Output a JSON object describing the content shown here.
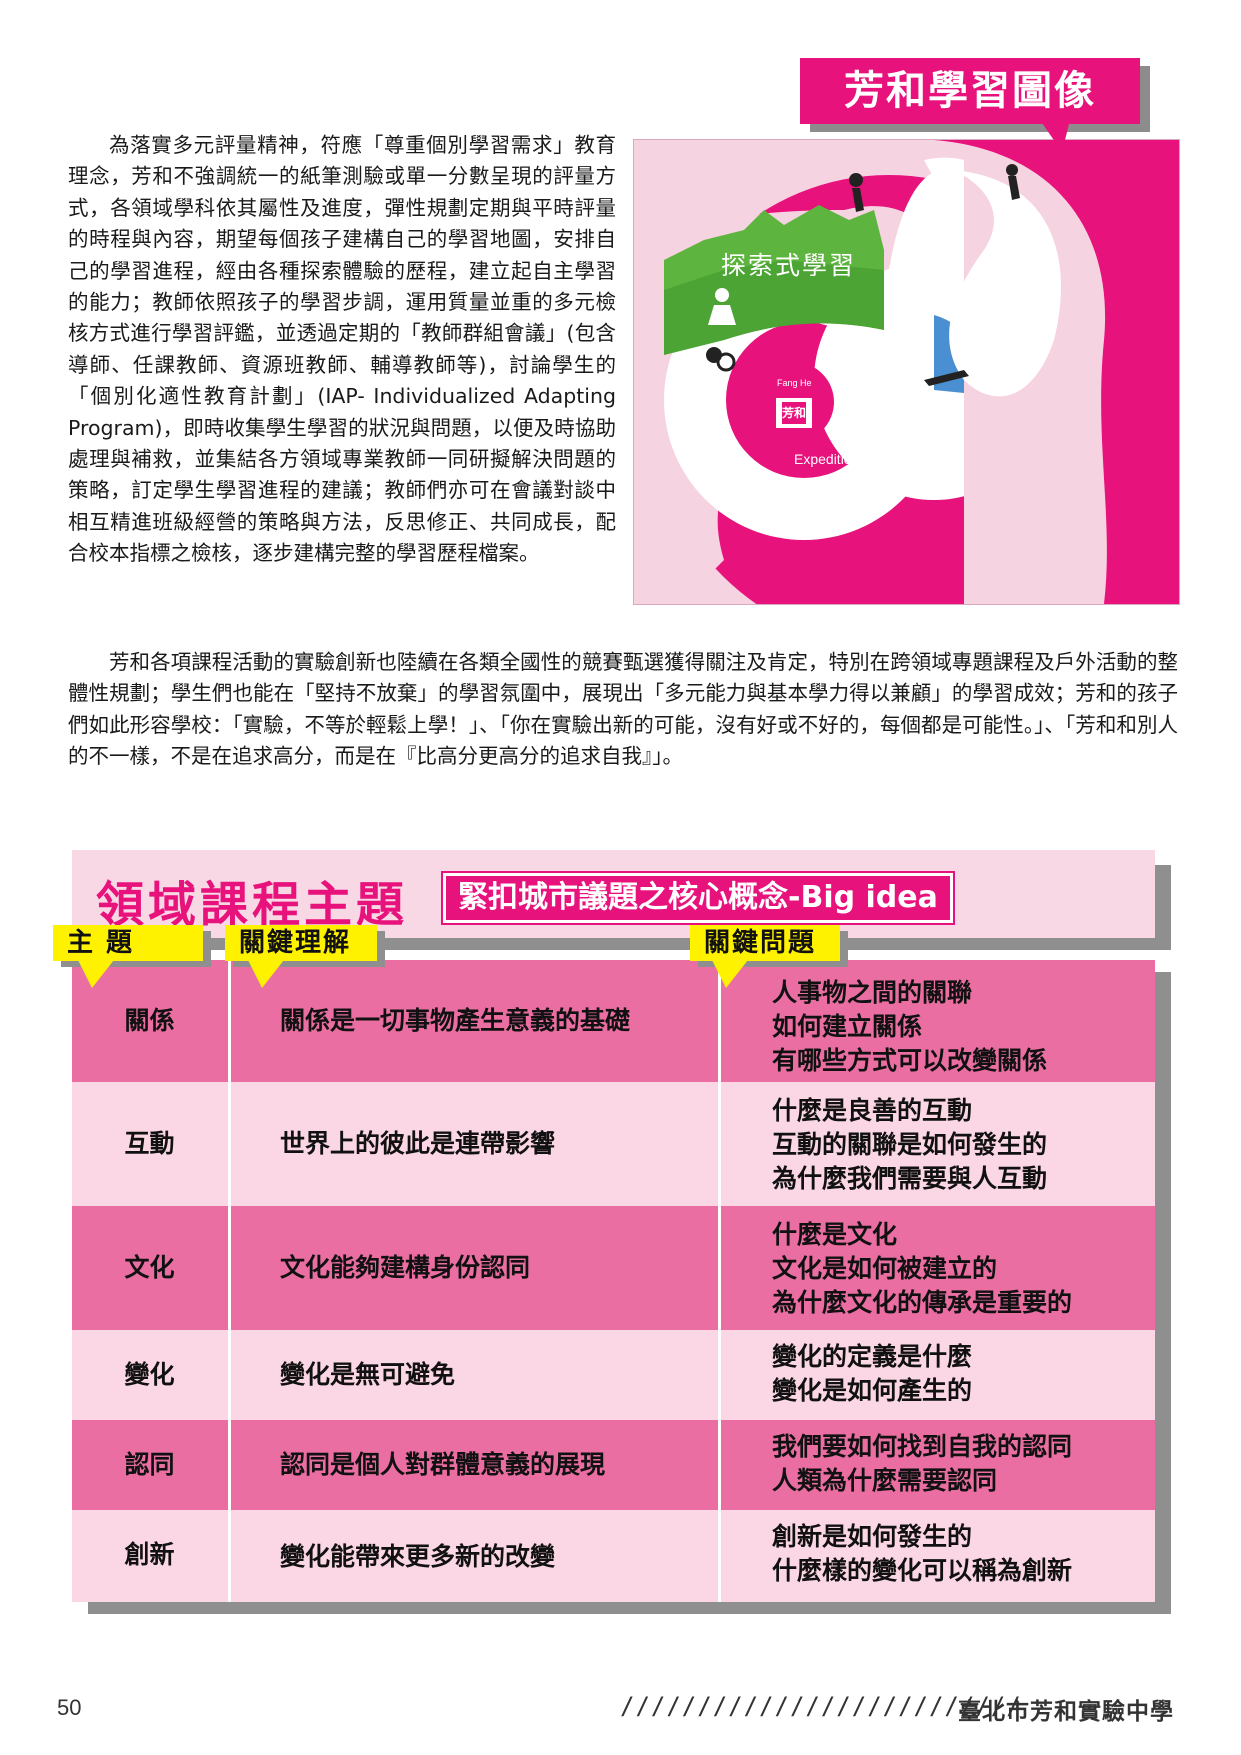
{
  "figure": {
    "title": "芳和學習圖像",
    "label_explore": "探索式學習",
    "label_expeditionary": "Expeditionary Learning",
    "logo_top": "Fang He",
    "logo_main": "芳和"
  },
  "intro_paragraph": "為落實多元評量精神，符應「尊重個別學習需求」教育理念，芳和不強調統一的紙筆測驗或單一分數呈現的評量方式，各領域學科依其屬性及進度，彈性規劃定期與平時評量的時程與內容，期望每個孩子建構自己的學習地圖，安排自己的學習進程，經由各種探索體驗的歷程，建立起自主學習的能力；教師依照孩子的學習步調，運用質量並重的多元檢核方式進行學習評鑑，並透過定期的「教師群組會議」(包含導師、任課教師、資源班教師、輔導教師等)，討論學生的「個別化適性教育計劃」(IAP- Individualized Adapting Program)，即時收集學生學習的狀況與問題，以便及時協助處理與補救，並集結各方領域專業教師一同研擬解決問題的策略，訂定學生學習進程的建議；教師們亦可在會議對談中相互精進班級經營的策略與方法，反思修正、共同成長，配合校本指標之檢核，逐步建構完整的學習歷程檔案。",
  "second_paragraph": "芳和各項課程活動的實驗創新也陸續在各類全國性的競賽甄選獲得關注及肯定，特別在跨領域專題課程及戶外活動的整體性規劃；學生們也能在「堅持不放棄」的學習氛圍中，展現出「多元能力與基本學力得以兼顧」的學習成效；芳和的孩子們如此形容學校：「實驗，不等於輕鬆上學！」、「你在實驗出新的可能，沒有好或不好的，每個都是可能性。」、「芳和和別人的不一樣，不是在追求高分，而是在『比高分更高分的追求自我』」。",
  "section": {
    "title": "領域課程主題",
    "subtitle": "緊扣城市議題之核心概念-Big idea"
  },
  "table": {
    "headers": [
      "主 題",
      "關鍵理解",
      "關鍵問題"
    ],
    "rows": [
      {
        "theme": "關係",
        "understanding": "關係是一切事物產生意義的基礎",
        "questions": [
          "人事物之間的關聯",
          "如何建立關係",
          "有哪些方式可以改變關係"
        ]
      },
      {
        "theme": "互動",
        "understanding": "世界上的彼此是連帶影響",
        "questions": [
          "什麼是良善的互動",
          "互動的關聯是如何發生的",
          "為什麼我們需要與人互動"
        ]
      },
      {
        "theme": "文化",
        "understanding": "文化能夠建構身份認同",
        "questions": [
          "什麼是文化",
          "文化是如何被建立的",
          "為什麼文化的傳承是重要的"
        ]
      },
      {
        "theme": "變化",
        "understanding": "變化是無可避免",
        "questions": [
          "變化的定義是什麼",
          "變化是如何產生的"
        ]
      },
      {
        "theme": "認同",
        "understanding": "認同是個人對群體意義的展現",
        "questions": [
          "我們要如何找到自我的認同",
          "人類為什麼需要認同"
        ]
      },
      {
        "theme": "創新",
        "understanding": "變化能帶來更多新的改變",
        "questions": [
          "創新是如何發生的",
          "什麼樣的變化可以稱為創新"
        ]
      }
    ]
  },
  "footer": {
    "page_number": "50",
    "decoration": "//////////////////////////",
    "school": "臺北市芳和實驗中學"
  },
  "colors": {
    "brand_pink": "#e8127c",
    "row_dark": "#ea6ea2",
    "row_light": "#fbd6e4",
    "label_yellow": "#fff200"
  }
}
